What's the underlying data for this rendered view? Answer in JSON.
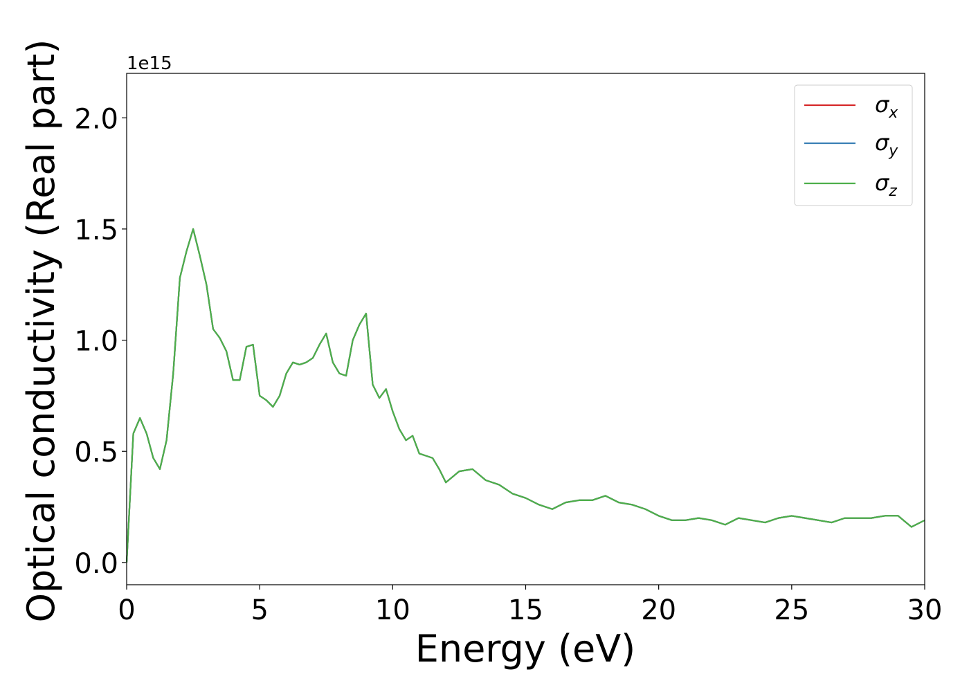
{
  "chart_data": {
    "type": "line",
    "xlabel": "Energy (eV)",
    "ylabel": "Optical conductivity (Real part)",
    "y_offset_label": "1e15",
    "x": [
      0,
      0.25,
      0.5,
      0.75,
      1,
      1.25,
      1.5,
      1.75,
      2,
      2.25,
      2.5,
      2.75,
      3,
      3.25,
      3.5,
      3.75,
      4,
      4.25,
      4.5,
      4.75,
      5,
      5.25,
      5.5,
      5.75,
      6,
      6.25,
      6.5,
      6.75,
      7,
      7.25,
      7.5,
      7.75,
      8,
      8.25,
      8.5,
      8.75,
      9,
      9.25,
      9.5,
      9.75,
      10,
      10.25,
      10.5,
      10.75,
      11,
      11.25,
      11.5,
      11.75,
      12,
      12.5,
      13,
      13.5,
      14,
      14.5,
      15,
      15.5,
      16,
      16.5,
      17,
      17.5,
      18,
      18.5,
      19,
      19.5,
      20,
      20.5,
      21,
      21.5,
      22,
      22.5,
      23,
      23.5,
      24,
      24.5,
      25,
      25.5,
      26,
      26.5,
      27,
      27.5,
      28,
      28.5,
      29,
      29.5,
      30
    ],
    "series": [
      {
        "name": "σx",
        "color": "#d62728",
        "values": [
          0,
          0.58,
          0.65,
          0.58,
          0.47,
          0.42,
          0.55,
          0.85,
          1.28,
          1.4,
          1.5,
          1.38,
          1.25,
          1.05,
          1.01,
          0.95,
          0.82,
          0.82,
          0.97,
          0.98,
          0.75,
          0.73,
          0.7,
          0.75,
          0.85,
          0.9,
          0.89,
          0.9,
          0.92,
          0.98,
          1.03,
          0.9,
          0.85,
          0.84,
          1.0,
          1.07,
          1.12,
          0.8,
          0.74,
          0.78,
          0.68,
          0.6,
          0.55,
          0.57,
          0.49,
          0.48,
          0.47,
          0.42,
          0.36,
          0.41,
          0.42,
          0.37,
          0.35,
          0.31,
          0.29,
          0.26,
          0.24,
          0.27,
          0.28,
          0.28,
          0.3,
          0.27,
          0.26,
          0.24,
          0.21,
          0.19,
          0.19,
          0.2,
          0.19,
          0.17,
          0.2,
          0.19,
          0.18,
          0.2,
          0.21,
          0.2,
          0.19,
          0.18,
          0.2,
          0.2,
          0.2,
          0.21,
          0.21,
          0.16,
          0.19
        ]
      },
      {
        "name": "σy",
        "color": "#3a7fb5",
        "values": [
          0,
          0.58,
          0.65,
          0.58,
          0.47,
          0.42,
          0.55,
          0.85,
          1.28,
          1.4,
          1.5,
          1.38,
          1.25,
          1.05,
          1.01,
          0.95,
          0.82,
          0.82,
          0.97,
          0.98,
          0.75,
          0.73,
          0.7,
          0.75,
          0.85,
          0.9,
          0.89,
          0.9,
          0.92,
          0.98,
          1.03,
          0.9,
          0.85,
          0.84,
          1.0,
          1.07,
          1.12,
          0.8,
          0.74,
          0.78,
          0.68,
          0.6,
          0.55,
          0.57,
          0.49,
          0.48,
          0.47,
          0.42,
          0.36,
          0.41,
          0.42,
          0.37,
          0.35,
          0.31,
          0.29,
          0.26,
          0.24,
          0.27,
          0.28,
          0.28,
          0.3,
          0.27,
          0.26,
          0.24,
          0.21,
          0.19,
          0.19,
          0.2,
          0.19,
          0.17,
          0.2,
          0.19,
          0.18,
          0.2,
          0.21,
          0.2,
          0.19,
          0.18,
          0.2,
          0.2,
          0.2,
          0.21,
          0.21,
          0.16,
          0.19
        ]
      },
      {
        "name": "σz",
        "color": "#4daf4a",
        "values": [
          0,
          0.58,
          0.65,
          0.58,
          0.47,
          0.42,
          0.55,
          0.85,
          1.28,
          1.4,
          1.5,
          1.38,
          1.25,
          1.05,
          1.01,
          0.95,
          0.82,
          0.82,
          0.97,
          0.98,
          0.75,
          0.73,
          0.7,
          0.75,
          0.85,
          0.9,
          0.89,
          0.9,
          0.92,
          0.98,
          1.03,
          0.9,
          0.85,
          0.84,
          1.0,
          1.07,
          1.12,
          0.8,
          0.74,
          0.78,
          0.68,
          0.6,
          0.55,
          0.57,
          0.49,
          0.48,
          0.47,
          0.42,
          0.36,
          0.41,
          0.42,
          0.37,
          0.35,
          0.31,
          0.29,
          0.26,
          0.24,
          0.27,
          0.28,
          0.28,
          0.3,
          0.27,
          0.26,
          0.24,
          0.21,
          0.19,
          0.19,
          0.2,
          0.19,
          0.17,
          0.2,
          0.19,
          0.18,
          0.2,
          0.21,
          0.2,
          0.19,
          0.18,
          0.2,
          0.2,
          0.2,
          0.21,
          0.21,
          0.16,
          0.19
        ]
      }
    ],
    "xlim": [
      0,
      30
    ],
    "xticks": [
      0,
      5,
      10,
      15,
      20,
      25,
      30
    ],
    "ylim": [
      -0.1,
      2.2
    ],
    "yticks": [
      {
        "value": 0,
        "label": "0.0"
      },
      {
        "value": 0.5,
        "label": "0.5"
      },
      {
        "value": 1,
        "label": "1.0"
      },
      {
        "value": 1.5,
        "label": "1.5"
      },
      {
        "value": 2,
        "label": "2.0"
      }
    ],
    "grid": false,
    "legend": "upper right"
  }
}
